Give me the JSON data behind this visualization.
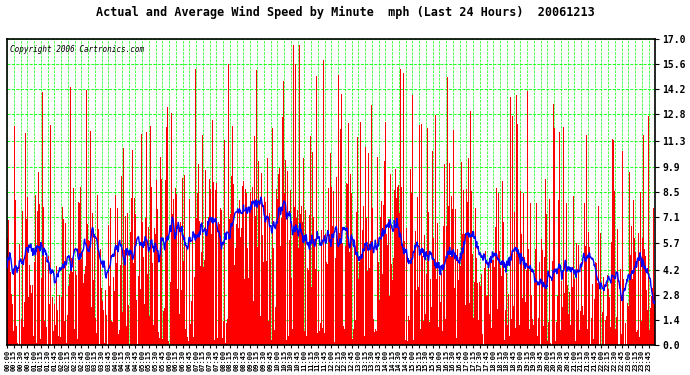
{
  "title": "Actual and Average Wind Speed by Minute  mph (Last 24 Hours)  20061213",
  "copyright": "Copyright 2006 Cartronics.com",
  "yticks": [
    0.0,
    1.4,
    2.8,
    4.2,
    5.7,
    7.1,
    8.5,
    9.9,
    11.3,
    12.8,
    14.2,
    15.6,
    17.0
  ],
  "ymin": 0.0,
  "ymax": 17.0,
  "bar_color": "#ff0000",
  "line_color": "#0000ff",
  "bg_color": "#ffffff",
  "grid_color": "#00ff00",
  "border_color": "#000000",
  "title_color": "#000000",
  "copyright_color": "#000000",
  "xtick_interval_minutes": 15,
  "total_minutes": 1440,
  "seed": 12
}
